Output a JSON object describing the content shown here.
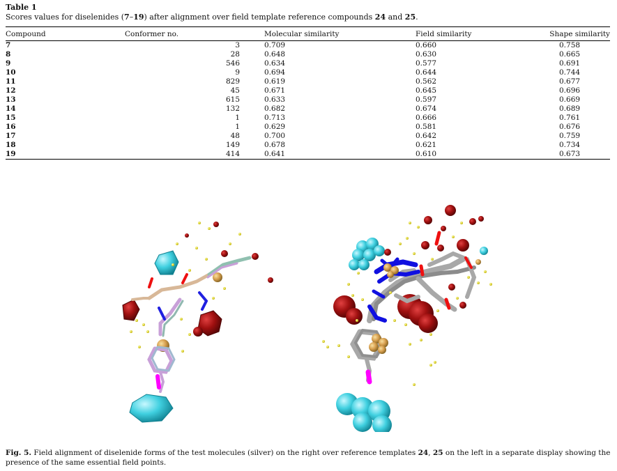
{
  "table": {
    "title": "Table 1",
    "caption_parts": [
      "Scores values for diselenides (",
      "7",
      "–",
      "19",
      ") after alignment over field template reference compounds ",
      "24",
      " and ",
      "25",
      "."
    ],
    "headers": [
      "Compound",
      "Conformer no.",
      "Molecular similarity",
      "Field similarity",
      "Shape similarity"
    ],
    "rows": [
      [
        "7",
        "3",
        "0.709",
        "0.660",
        "0.758"
      ],
      [
        "8",
        "28",
        "0.648",
        "0.630",
        "0.665"
      ],
      [
        "9",
        "546",
        "0.634",
        "0.577",
        "0.691"
      ],
      [
        "10",
        "9",
        "0.694",
        "0.644",
        "0.744"
      ],
      [
        "11",
        "829",
        "0.619",
        "0.562",
        "0.677"
      ],
      [
        "12",
        "45",
        "0.671",
        "0.645",
        "0.696"
      ],
      [
        "13",
        "615",
        "0.633",
        "0.597",
        "0.669"
      ],
      [
        "14",
        "132",
        "0.682",
        "0.674",
        "0.689"
      ],
      [
        "15",
        "1",
        "0.713",
        "0.666",
        "0.761"
      ],
      [
        "16",
        "1",
        "0.629",
        "0.581",
        "0.676"
      ],
      [
        "17",
        "48",
        "0.700",
        "0.642",
        "0.759"
      ],
      [
        "18",
        "149",
        "0.678",
        "0.621",
        "0.734"
      ],
      [
        "19",
        "414",
        "0.641",
        "0.610",
        "0.673"
      ]
    ]
  },
  "figure": {
    "caption_label": "Fig. 5.",
    "caption_parts": [
      " Field alignment of diselenide forms of the test molecules (silver) on the right over reference templates ",
      "24",
      ", ",
      "25",
      " on the left in a separate display showing the presence of the same essential field points."
    ],
    "colors": {
      "negative_field": "#8b0d0d",
      "positive_field": "#3fd0e0",
      "hydrophobic": "#d8a860",
      "shape_points": "#f0e020",
      "selenium": "#ff00ff",
      "nitrogen": "#1010e0",
      "oxygen": "#ee1010",
      "carbon_test": "#a8a8a8"
    }
  }
}
